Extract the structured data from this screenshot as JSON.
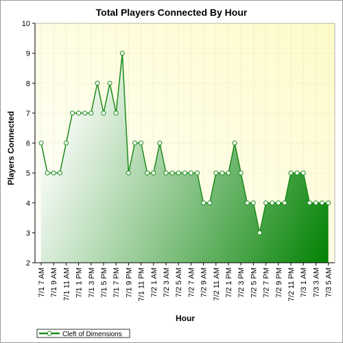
{
  "chart_data": {
    "type": "area",
    "title": "Total Players Connected By Hour",
    "xlabel": "Hour",
    "ylabel": "Players Connected",
    "ylim": [
      2,
      10
    ],
    "yticks": [
      2,
      3,
      4,
      5,
      6,
      7,
      8,
      9,
      10
    ],
    "grid": true,
    "legend_position": "bottom-left",
    "categories": [
      "7/1 7 AM",
      "7/1 8 AM",
      "7/1 9 AM",
      "7/1 10 AM",
      "7/1 11 AM",
      "7/1 12 PM",
      "7/1 1 PM",
      "7/1 2 PM",
      "7/1 3 PM",
      "7/1 4 PM",
      "7/1 5 PM",
      "7/1 6 PM",
      "7/1 7 PM",
      "7/1 8 PM",
      "7/1 9 PM",
      "7/1 10 PM",
      "7/1 11 PM",
      "7/2 12 AM",
      "7/2 1 AM",
      "7/2 2 AM",
      "7/2 3 AM",
      "7/2 4 AM",
      "7/2 5 AM",
      "7/2 6 AM",
      "7/2 7 AM",
      "7/2 8 AM",
      "7/2 9 AM",
      "7/2 10 AM",
      "7/2 11 AM",
      "7/2 12 PM",
      "7/2 1 PM",
      "7/2 2 PM",
      "7/2 3 PM",
      "7/2 4 PM",
      "7/2 5 PM",
      "7/2 6 PM",
      "7/2 7 PM",
      "7/2 8 PM",
      "7/2 9 PM",
      "7/2 10 PM",
      "7/2 11 PM",
      "7/3 12 AM",
      "7/3 1 AM",
      "7/3 2 AM",
      "7/3 3 AM",
      "7/3 4 AM",
      "7/3 5 AM"
    ],
    "tick_labels": [
      "7/1 7 AM",
      "7/1 9 AM",
      "7/1 11 AM",
      "7/1 1 PM",
      "7/1 3 PM",
      "7/1 5 PM",
      "7/1 7 PM",
      "7/1 9 PM",
      "7/1 11 PM",
      "7/2 1 AM",
      "7/2 3 AM",
      "7/2 5 AM",
      "7/2 7 AM",
      "7/2 9 AM",
      "7/2 11 AM",
      "7/2 1 PM",
      "7/2 3 PM",
      "7/2 5 PM",
      "7/2 7 PM",
      "7/2 9 PM",
      "7/2 11 PM",
      "7/3 1 AM",
      "7/3 3 AM",
      "7/3 5 AM"
    ],
    "series": [
      {
        "name": "Cleft of Dimensions",
        "color": "#1a8a1a",
        "values": [
          6,
          5,
          5,
          5,
          6,
          7,
          7,
          7,
          7,
          8,
          7,
          8,
          7,
          9,
          5,
          6,
          6,
          5,
          5,
          6,
          5,
          5,
          5,
          5,
          5,
          5,
          4,
          4,
          5,
          5,
          5,
          6,
          5,
          4,
          4,
          3,
          4,
          4,
          4,
          4,
          5,
          5,
          5,
          4,
          4,
          4,
          4
        ]
      }
    ]
  },
  "colors": {
    "plot_bg_start": "#ffffff",
    "plot_bg_end": "#fdfbc8",
    "grid": "#c8c8a0",
    "area_light": "#ffffff",
    "area_dark": "#008000",
    "line": "#1a8a1a"
  }
}
